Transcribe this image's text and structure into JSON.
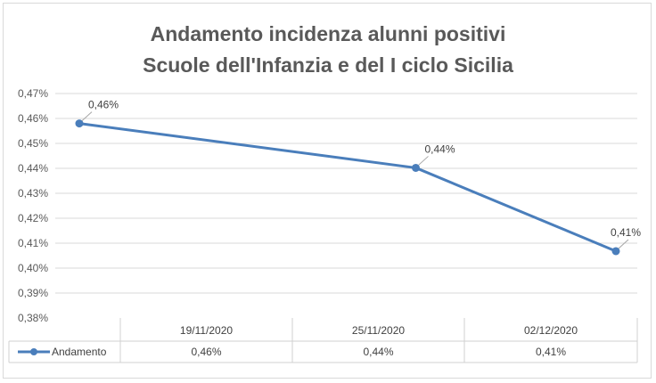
{
  "chart_data": {
    "type": "line",
    "title": "Andamento incidenza alunni positivi",
    "subtitle": "Scuole dell'Infanzia e del I ciclo Sicilia",
    "categories": [
      "19/11/2020",
      "25/11/2020",
      "02/12/2020"
    ],
    "series": [
      {
        "name": "Andamento",
        "values": [
          0.458,
          0.4402,
          0.4068
        ],
        "data_labels": [
          "0,46%",
          "0,44%",
          "0,41%"
        ],
        "table_values": [
          "0,46%",
          "0,44%",
          "0,41%"
        ],
        "color": "#4a7ebb"
      }
    ],
    "ylim": [
      0.38,
      0.47
    ],
    "yticks": [
      0.38,
      0.39,
      0.4,
      0.41,
      0.42,
      0.43,
      0.44,
      0.45,
      0.46,
      0.47
    ],
    "ytick_labels": [
      "0,38%",
      "0,39%",
      "0,40%",
      "0,41%",
      "0,42%",
      "0,43%",
      "0,44%",
      "0,45%",
      "0,46%",
      "0,47%"
    ],
    "grid": true,
    "legend": "data-table",
    "xlabel": "",
    "ylabel": ""
  }
}
